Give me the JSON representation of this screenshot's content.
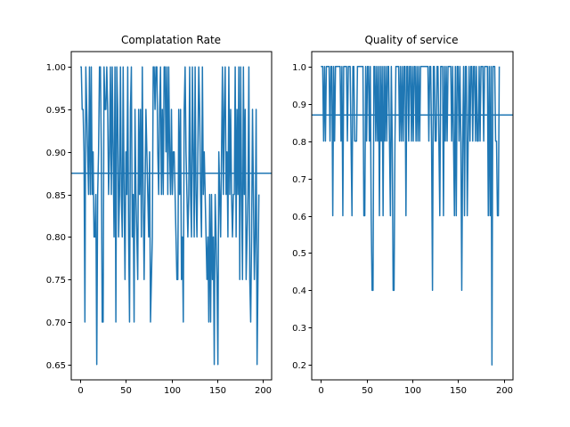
{
  "chart_data": [
    {
      "type": "line",
      "title": "Complatation Rate",
      "xlabel": "",
      "ylabel": "",
      "xlim": [
        -10,
        210
      ],
      "ylim": [
        0.632,
        1.018
      ],
      "xticks": [
        0,
        50,
        100,
        150,
        200
      ],
      "xtick_labels": [
        "0",
        "50",
        "100",
        "150",
        "200"
      ],
      "yticks": [
        0.65,
        0.7,
        0.75,
        0.8,
        0.85,
        0.9,
        0.95,
        1.0
      ],
      "ytick_labels": [
        "0.65",
        "0.70",
        "0.75",
        "0.80",
        "0.85",
        "0.90",
        "0.95",
        "1.00"
      ],
      "grid": false,
      "color": "#1f77b4",
      "hline": 0.875,
      "x_start": 0,
      "x_step": 1,
      "values": [
        1.0,
        1.0,
        0.95,
        0.95,
        0.9,
        0.7,
        1.0,
        0.95,
        0.9,
        0.85,
        1.0,
        0.85,
        1.0,
        0.85,
        0.9,
        0.8,
        0.8,
        0.85,
        0.65,
        0.85,
        0.9,
        1.0,
        1.0,
        0.9,
        0.7,
        0.7,
        1.0,
        0.95,
        0.95,
        1.0,
        0.95,
        0.85,
        0.9,
        1.0,
        0.85,
        1.0,
        0.9,
        0.8,
        1.0,
        0.7,
        1.0,
        0.95,
        0.8,
        0.85,
        1.0,
        0.85,
        0.8,
        1.0,
        0.85,
        0.75,
        0.9,
        0.85,
        1.0,
        0.8,
        0.7,
        0.95,
        1.0,
        0.8,
        0.85,
        0.7,
        0.95,
        0.85,
        0.8,
        0.75,
        0.95,
        0.85,
        0.95,
        0.8,
        1.0,
        0.85,
        0.75,
        0.85,
        0.95,
        0.9,
        0.85,
        0.8,
        0.9,
        0.7,
        0.75,
        0.8,
        1.0,
        1.0,
        0.95,
        1.0,
        1.0,
        0.9,
        0.85,
        0.95,
        1.0,
        0.85,
        0.95,
        0.85,
        1.0,
        1.0,
        0.9,
        1.0,
        0.85,
        1.0,
        0.9,
        0.85,
        0.95,
        0.85,
        0.9,
        0.9,
        0.85,
        0.8,
        0.75,
        0.75,
        0.95,
        0.85,
        0.95,
        0.75,
        0.8,
        0.7,
        0.95,
        1.0,
        0.9,
        0.85,
        0.8,
        0.85,
        1.0,
        0.85,
        0.8,
        1.0,
        0.9,
        0.8,
        1.0,
        0.85,
        0.8,
        0.9,
        1.0,
        0.95,
        0.85,
        0.8,
        1.0,
        0.85,
        0.9,
        0.85,
        0.8,
        0.75,
        0.8,
        0.7,
        0.85,
        0.7,
        0.85,
        0.75,
        0.8,
        0.65,
        0.85,
        0.8,
        0.75,
        0.65,
        0.9,
        0.85,
        0.8,
        0.9,
        1.0,
        0.85,
        0.95,
        1.0,
        0.85,
        0.9,
        0.8,
        1.0,
        0.85,
        0.95,
        0.85,
        0.8,
        0.85,
        0.85,
        1.0,
        0.8,
        0.95,
        0.85,
        1.0,
        0.75,
        1.0,
        0.85,
        0.75,
        1.0,
        0.85,
        0.95,
        0.75,
        0.8,
        0.85,
        1.0,
        0.75,
        0.7,
        0.8,
        0.95,
        0.85,
        0.75,
        0.8,
        0.95,
        0.65,
        0.75,
        0.85
      ]
    },
    {
      "type": "line",
      "title": "Quality of service",
      "xlabel": "",
      "ylabel": "",
      "xlim": [
        -10,
        210
      ],
      "ylim": [
        0.16,
        1.04
      ],
      "xticks": [
        0,
        50,
        100,
        150,
        200
      ],
      "xtick_labels": [
        "0",
        "50",
        "100",
        "150",
        "200"
      ],
      "yticks": [
        0.2,
        0.3,
        0.4,
        0.5,
        0.6,
        0.7,
        0.8,
        0.9,
        1.0
      ],
      "ytick_labels": [
        "0.2",
        "0.3",
        "0.4",
        "0.5",
        "0.6",
        "0.7",
        "0.8",
        "0.9",
        "1.0"
      ],
      "grid": false,
      "color": "#1f77b4",
      "hline": 0.87,
      "x_start": 0,
      "x_step": 1,
      "values": [
        1.0,
        1.0,
        1.0,
        0.8,
        1.0,
        0.8,
        1.0,
        1.0,
        1.0,
        1.0,
        0.8,
        1.0,
        1.0,
        0.6,
        1.0,
        0.8,
        1.0,
        1.0,
        1.0,
        1.0,
        1.0,
        1.0,
        0.8,
        1.0,
        0.6,
        1.0,
        1.0,
        1.0,
        1.0,
        0.8,
        1.0,
        1.0,
        1.0,
        0.8,
        0.6,
        1.0,
        1.0,
        0.8,
        0.8,
        0.8,
        1.0,
        1.0,
        1.0,
        1.0,
        1.0,
        1.0,
        1.0,
        0.6,
        0.6,
        1.0,
        0.8,
        1.0,
        1.0,
        0.8,
        1.0,
        0.6,
        0.4,
        0.4,
        1.0,
        1.0,
        0.8,
        1.0,
        0.8,
        1.0,
        0.6,
        1.0,
        0.8,
        1.0,
        0.6,
        1.0,
        0.8,
        1.0,
        0.8,
        1.0,
        1.0,
        0.8,
        0.6,
        1.0,
        0.8,
        0.4,
        0.4,
        0.8,
        1.0,
        1.0,
        1.0,
        1.0,
        0.8,
        1.0,
        0.8,
        1.0,
        0.8,
        1.0,
        1.0,
        0.6,
        1.0,
        1.0,
        0.8,
        1.0,
        1.0,
        0.8,
        1.0,
        0.8,
        1.0,
        1.0,
        0.8,
        1.0,
        0.8,
        1.0,
        0.8,
        1.0,
        1.0,
        1.0,
        1.0,
        1.0,
        1.0,
        1.0,
        1.0,
        1.0,
        0.8,
        1.0,
        1.0,
        0.8,
        0.4,
        1.0,
        1.0,
        0.8,
        0.8,
        1.0,
        1.0,
        0.8,
        0.6,
        1.0,
        1.0,
        1.0,
        0.6,
        1.0,
        0.8,
        1.0,
        0.8,
        1.0,
        1.0,
        1.0,
        1.0,
        0.8,
        1.0,
        0.8,
        0.6,
        1.0,
        0.6,
        1.0,
        1.0,
        0.8,
        1.0,
        0.8,
        0.4,
        0.8,
        1.0,
        0.6,
        1.0,
        1.0,
        0.6,
        0.8,
        1.0,
        0.8,
        1.0,
        1.0,
        0.8,
        1.0,
        1.0,
        0.8,
        1.0,
        0.8,
        0.8,
        1.0,
        0.8,
        1.0,
        1.0,
        1.0,
        0.8,
        1.0,
        1.0,
        1.0,
        1.0,
        0.6,
        1.0,
        0.6,
        1.0,
        0.2,
        1.0,
        1.0,
        1.0,
        0.8,
        0.8,
        0.6,
        0.6,
        1.0
      ]
    }
  ]
}
